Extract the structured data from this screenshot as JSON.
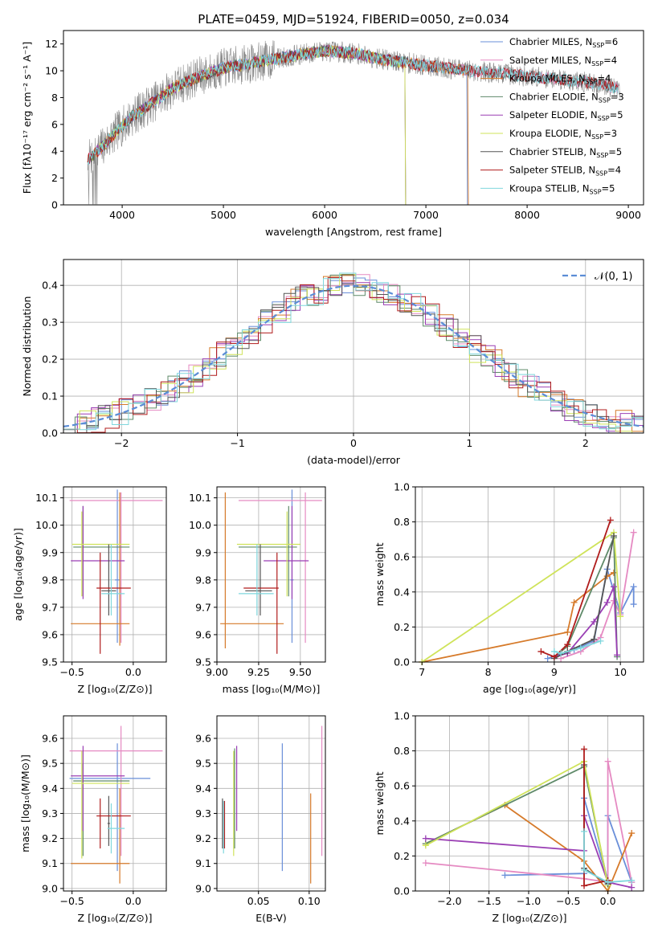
{
  "page_title": "PLATE=0459, MJD=51924, FIBERID=0050, z=0.034",
  "models": [
    {
      "name": "Chabrier MILES",
      "nssp": "6",
      "color": "#6a8fd9"
    },
    {
      "name": "Salpeter MILES",
      "nssp": "4",
      "color": "#e58ac2"
    },
    {
      "name": "Kroupa MILES",
      "nssp": "4",
      "color": "#d67a2a"
    },
    {
      "name": "Chabrier ELODIE",
      "nssp": "3",
      "color": "#5f8a69"
    },
    {
      "name": "Salpeter ELODIE",
      "nssp": "5",
      "color": "#9a3fb4"
    },
    {
      "name": "Kroupa ELODIE",
      "nssp": "3",
      "color": "#cfe35a"
    },
    {
      "name": "Chabrier STELIB",
      "nssp": "5",
      "color": "#555555"
    },
    {
      "name": "Salpeter STELIB",
      "nssp": "4",
      "color": "#b01c1c"
    },
    {
      "name": "Kroupa STELIB",
      "nssp": "5",
      "color": "#7fd7dd"
    }
  ],
  "chart_data": [
    {
      "id": "spectrum",
      "type": "line",
      "title": "PLATE=0459, MJD=51924, FIBERID=0050, z=0.034",
      "xlabel": "wavelength [Angstrom, rest frame]",
      "ylabel": "Flux [fλ10⁻¹⁷ erg cm⁻² s⁻¹ A⁻¹]",
      "xlim": [
        3420,
        9150
      ],
      "ylim": [
        0,
        13
      ],
      "xticks": [
        4000,
        5000,
        6000,
        7000,
        8000,
        9000
      ],
      "yticks": [
        0,
        2,
        4,
        6,
        8,
        10,
        12
      ],
      "grid": false,
      "legend": "upper right",
      "continuum": [
        [
          3650,
          3.3
        ],
        [
          3800,
          4.3
        ],
        [
          3950,
          5.5
        ],
        [
          4100,
          6.6
        ],
        [
          4300,
          7.6
        ],
        [
          4500,
          8.7
        ],
        [
          4700,
          9.4
        ],
        [
          5000,
          10.2
        ],
        [
          5300,
          10.6
        ],
        [
          5600,
          11.0
        ],
        [
          6000,
          11.5
        ],
        [
          6300,
          11.3
        ],
        [
          6600,
          10.8
        ],
        [
          7000,
          10.4
        ],
        [
          7300,
          10.1
        ],
        [
          7600,
          9.9
        ],
        [
          8000,
          9.6
        ],
        [
          8300,
          9.4
        ],
        [
          8700,
          9.0
        ],
        [
          8900,
          8.7
        ]
      ],
      "model_end_wavelength": {
        "Chabrier MILES": 7410,
        "Kroupa MILES": 7420,
        "Kroupa ELODIE": 6800,
        "Salpeter ELODIE": 6800,
        "Chabrier ELODIE": 6800
      }
    },
    {
      "id": "residuals",
      "type": "histogram",
      "xlabel": "(data-model)/error",
      "ylabel": "Normed distribution",
      "xlim": [
        -2.5,
        2.5
      ],
      "ylim": [
        0,
        0.47
      ],
      "xticks": [
        -2,
        -1,
        0,
        1,
        2
      ],
      "xtick_labels": [
        "−2",
        "−1",
        "0",
        "1",
        "2"
      ],
      "yticks": [
        0.0,
        0.1,
        0.2,
        0.3,
        0.4
      ],
      "grid": true,
      "legend": "upper right",
      "reference_curve": {
        "label": "𝒩(0, 1)",
        "mean": 0,
        "sigma": 1
      }
    },
    {
      "id": "Z-age",
      "type": "errorbar",
      "xlabel": "Z [log₁₀(Z/Z⊙)]",
      "ylabel": "age  [log₁₀(age/yr)]",
      "xlim": [
        -0.57,
        0.27
      ],
      "ylim": [
        9.5,
        10.14
      ],
      "xticks": [
        -0.5,
        0.0
      ],
      "xtick_labels": [
        "−0.5",
        "0.0"
      ],
      "yticks": [
        9.5,
        9.6,
        9.7,
        9.8,
        9.9,
        10.0,
        10.1
      ],
      "grid": true,
      "points": [
        {
          "model": "Chabrier MILES",
          "x": -0.13,
          "xlo": -0.15,
          "xhi": -0.11,
          "y": 9.8,
          "ylo": 9.57,
          "yhi": 10.13
        },
        {
          "model": "Salpeter MILES",
          "x": -0.1,
          "xlo": -0.52,
          "xhi": 0.24,
          "y": 10.09,
          "ylo": 9.57,
          "yhi": 10.12
        },
        {
          "model": "Kroupa MILES",
          "x": -0.11,
          "xlo": -0.51,
          "xhi": -0.03,
          "y": 9.64,
          "ylo": 9.56,
          "yhi": 10.12
        },
        {
          "model": "Chabrier ELODIE",
          "x": -0.41,
          "xlo": -0.49,
          "xhi": -0.03,
          "y": 9.92,
          "ylo": 9.74,
          "yhi": 10.07
        },
        {
          "model": "Salpeter ELODIE",
          "x": -0.41,
          "xlo": -0.51,
          "xhi": -0.07,
          "y": 9.87,
          "ylo": 9.73,
          "yhi": 10.07
        },
        {
          "model": "Kroupa ELODIE",
          "x": -0.42,
          "xlo": -0.5,
          "xhi": -0.03,
          "y": 9.93,
          "ylo": 9.74,
          "yhi": 10.05
        },
        {
          "model": "Chabrier STELIB",
          "x": -0.2,
          "xlo": -0.26,
          "xhi": -0.14,
          "y": 9.76,
          "ylo": 9.67,
          "yhi": 9.93
        },
        {
          "model": "Salpeter STELIB",
          "x": -0.27,
          "xlo": -0.3,
          "xhi": -0.02,
          "y": 9.77,
          "ylo": 9.53,
          "yhi": 9.9
        },
        {
          "model": "Kroupa STELIB",
          "x": -0.18,
          "xlo": -0.26,
          "xhi": -0.07,
          "y": 9.75,
          "ylo": 9.67,
          "yhi": 9.93
        }
      ]
    },
    {
      "id": "mass-age",
      "type": "errorbar",
      "xlabel": "mass [log₁₀(M/M⊙)]",
      "ylabel": "",
      "xlim": [
        9.0,
        9.65
      ],
      "ylim": [
        9.5,
        10.14
      ],
      "xticks": [
        9.0,
        9.25,
        9.5
      ],
      "xtick_labels": [
        "9.00",
        "9.25",
        "9.50"
      ],
      "yticks": [
        9.5,
        9.6,
        9.7,
        9.8,
        9.9,
        10.0,
        10.1
      ],
      "grid": true,
      "points": [
        {
          "model": "Chabrier MILES",
          "x": 9.45,
          "xlo": 9.44,
          "xhi": 9.46,
          "y": 9.8,
          "ylo": 9.57,
          "yhi": 10.13
        },
        {
          "model": "Salpeter MILES",
          "x": 9.53,
          "xlo": 9.13,
          "xhi": 9.63,
          "y": 10.09,
          "ylo": 9.57,
          "yhi": 10.12
        },
        {
          "model": "Kroupa MILES",
          "x": 9.05,
          "xlo": 9.02,
          "xhi": 9.4,
          "y": 9.64,
          "ylo": 9.55,
          "yhi": 10.12
        },
        {
          "model": "Chabrier ELODIE",
          "x": 9.43,
          "xlo": 9.13,
          "xhi": 9.48,
          "y": 9.92,
          "ylo": 9.74,
          "yhi": 10.07
        },
        {
          "model": "Salpeter ELODIE",
          "x": 9.45,
          "xlo": 9.28,
          "xhi": 9.55,
          "y": 9.87,
          "ylo": 9.73,
          "yhi": 10.07
        },
        {
          "model": "Kroupa ELODIE",
          "x": 9.42,
          "xlo": 9.12,
          "xhi": 9.5,
          "y": 9.93,
          "ylo": 9.74,
          "yhi": 10.05
        },
        {
          "model": "Chabrier STELIB",
          "x": 9.26,
          "xlo": 9.17,
          "xhi": 9.33,
          "y": 9.76,
          "ylo": 9.67,
          "yhi": 9.93
        },
        {
          "model": "Salpeter STELIB",
          "x": 9.36,
          "xlo": 9.16,
          "xhi": 9.37,
          "y": 9.77,
          "ylo": 9.53,
          "yhi": 9.9
        },
        {
          "model": "Kroupa STELIB",
          "x": 9.24,
          "xlo": 9.13,
          "xhi": 9.34,
          "y": 9.75,
          "ylo": 9.67,
          "yhi": 9.93
        }
      ]
    },
    {
      "id": "age-weight",
      "type": "line",
      "xlabel": "age  [log₁₀(age/yr)]",
      "ylabel": "mass weight",
      "xlim": [
        6.9,
        10.35
      ],
      "ylim": [
        0,
        1
      ],
      "xticks": [
        7,
        8,
        9,
        10
      ],
      "yticks": [
        0.0,
        0.2,
        0.4,
        0.6,
        0.8,
        1.0
      ],
      "grid": true,
      "series": [
        {
          "model": "Chabrier MILES",
          "x": [
            8.9,
            9.3,
            9.6,
            9.8,
            10.0,
            10.2,
            10.2
          ],
          "y": [
            0.02,
            0.07,
            0.12,
            0.53,
            0.28,
            0.43,
            0.33
          ]
        },
        {
          "model": "Salpeter MILES",
          "x": [
            9.1,
            9.4,
            9.7,
            9.9,
            10.0,
            10.2
          ],
          "y": [
            0.02,
            0.06,
            0.14,
            0.35,
            0.27,
            0.74
          ]
        },
        {
          "model": "Kroupa MILES",
          "x": [
            7.0,
            9.2,
            9.3,
            9.8,
            9.9
          ],
          "y": [
            0.0,
            0.17,
            0.34,
            0.49,
            0.51
          ]
        },
        {
          "model": "Chabrier ELODIE",
          "x": [
            9.0,
            9.2,
            9.9,
            9.95
          ],
          "y": [
            0.03,
            0.09,
            0.71,
            0.03
          ]
        },
        {
          "model": "Salpeter ELODIE",
          "x": [
            9.0,
            9.2,
            9.6,
            9.8,
            9.9,
            9.95
          ],
          "y": [
            0.03,
            0.05,
            0.23,
            0.34,
            0.43,
            0.04
          ]
        },
        {
          "model": "Kroupa ELODIE",
          "x": [
            7.0,
            9.9,
            10.0
          ],
          "y": [
            0.0,
            0.74,
            0.26
          ]
        },
        {
          "model": "Chabrier STELIB",
          "x": [
            9.0,
            9.2,
            9.6,
            9.9
          ],
          "y": [
            0.02,
            0.06,
            0.13,
            0.72
          ]
        },
        {
          "model": "Salpeter STELIB",
          "x": [
            8.8,
            9.0,
            9.2,
            9.85
          ],
          "y": [
            0.06,
            0.03,
            0.1,
            0.81
          ]
        },
        {
          "model": "Kroupa STELIB",
          "x": [
            9.0,
            9.1,
            9.4,
            9.7
          ],
          "y": [
            0.06,
            0.05,
            0.08,
            0.12
          ]
        }
      ]
    },
    {
      "id": "Z-mass",
      "type": "errorbar",
      "xlabel": "Z [log₁₀(Z/Z⊙)]",
      "ylabel": "mass [log₁₀(M/M⊙)]",
      "xlim": [
        -0.57,
        0.27
      ],
      "ylim": [
        8.99,
        9.69
      ],
      "xticks": [
        -0.5,
        0.0
      ],
      "xtick_labels": [
        "−0.5",
        "0.0"
      ],
      "yticks": [
        9.0,
        9.1,
        9.2,
        9.3,
        9.4,
        9.5,
        9.6
      ],
      "grid": true,
      "points": [
        {
          "model": "Chabrier MILES",
          "x": -0.13,
          "xlo": -0.52,
          "xhi": 0.14,
          "y": 9.44,
          "ylo": 9.07,
          "yhi": 9.58
        },
        {
          "model": "Salpeter MILES",
          "x": -0.1,
          "xlo": -0.52,
          "xhi": 0.24,
          "y": 9.55,
          "ylo": 9.13,
          "yhi": 9.65
        },
        {
          "model": "Kroupa MILES",
          "x": -0.11,
          "xlo": -0.51,
          "xhi": -0.03,
          "y": 9.1,
          "ylo": 9.02,
          "yhi": 9.4
        },
        {
          "model": "Chabrier ELODIE",
          "x": -0.41,
          "xlo": -0.49,
          "xhi": -0.03,
          "y": 9.43,
          "ylo": 9.13,
          "yhi": 9.5
        },
        {
          "model": "Salpeter ELODIE",
          "x": -0.41,
          "xlo": -0.51,
          "xhi": -0.07,
          "y": 9.45,
          "ylo": 9.23,
          "yhi": 9.57
        },
        {
          "model": "Kroupa ELODIE",
          "x": -0.42,
          "xlo": -0.5,
          "xhi": -0.03,
          "y": 9.42,
          "ylo": 9.12,
          "yhi": 9.55
        },
        {
          "model": "Chabrier STELIB",
          "x": -0.2,
          "xlo": -0.21,
          "xhi": -0.19,
          "y": 9.26,
          "ylo": 9.17,
          "yhi": 9.37
        },
        {
          "model": "Salpeter STELIB",
          "x": -0.27,
          "xlo": -0.3,
          "xhi": -0.02,
          "y": 9.29,
          "ylo": 9.16,
          "yhi": 9.36
        },
        {
          "model": "Kroupa STELIB",
          "x": -0.18,
          "xlo": -0.21,
          "xhi": -0.07,
          "y": 9.24,
          "ylo": 9.14,
          "yhi": 9.34
        }
      ]
    },
    {
      "id": "ebv-mass",
      "type": "errorbar",
      "xlabel": "E(B-V)",
      "ylabel": "",
      "xlim": [
        0.009,
        0.116
      ],
      "ylim": [
        8.99,
        9.69
      ],
      "xticks": [
        0.05,
        0.1
      ],
      "xtick_labels": [
        "0.05",
        "0.10"
      ],
      "yticks": [
        9.0,
        9.1,
        9.2,
        9.3,
        9.4,
        9.5,
        9.6
      ],
      "grid": true,
      "points": [
        {
          "model": "Chabrier STELIB",
          "x": 0.0145,
          "y": 9.26,
          "ylo": 9.16,
          "yhi": 9.36
        },
        {
          "model": "Salpeter STELIB",
          "x": 0.0165,
          "y": 9.26,
          "ylo": 9.16,
          "yhi": 9.35
        },
        {
          "model": "Kroupa STELIB",
          "x": 0.0155,
          "y": 9.25,
          "ylo": 9.14,
          "yhi": 9.35
        },
        {
          "model": "Kroupa ELODIE",
          "x": 0.0255,
          "y": 9.4,
          "ylo": 9.13,
          "yhi": 9.55
        },
        {
          "model": "Chabrier ELODIE",
          "x": 0.0265,
          "y": 9.41,
          "ylo": 9.16,
          "yhi": 9.56
        },
        {
          "model": "Salpeter ELODIE",
          "x": 0.0285,
          "y": 9.4,
          "ylo": 9.23,
          "yhi": 9.57
        },
        {
          "model": "Chabrier MILES",
          "x": 0.0735,
          "y": 9.32,
          "ylo": 9.07,
          "yhi": 9.58
        },
        {
          "model": "Kroupa MILES",
          "x": 0.1015,
          "y": 9.2,
          "ylo": 9.02,
          "yhi": 9.38
        },
        {
          "model": "Salpeter MILES",
          "x": 0.1125,
          "y": 9.4,
          "ylo": 9.13,
          "yhi": 9.65
        }
      ]
    },
    {
      "id": "Z-weight",
      "type": "line",
      "xlabel": "Z [log₁₀(Z/Z⊙)]",
      "ylabel": "mass weight",
      "xlim": [
        -2.43,
        0.45
      ],
      "ylim": [
        0,
        1
      ],
      "xticks": [
        -2.0,
        -1.5,
        -1.0,
        -0.5,
        0.0
      ],
      "xtick_labels": [
        "−2.0",
        "−1.5",
        "−1.0",
        "−0.5",
        "0.0"
      ],
      "yticks": [
        0.0,
        0.2,
        0.4,
        0.6,
        0.8,
        1.0
      ],
      "grid": true,
      "series": [
        {
          "model": "Chabrier MILES",
          "x": [
            -1.3,
            -0.3,
            -0.3,
            0.0,
            0.0,
            0.3
          ],
          "y": [
            0.09,
            0.1,
            0.53,
            0.06,
            0.43,
            0.05
          ]
        },
        {
          "model": "Salpeter MILES",
          "x": [
            -2.3,
            -0.3,
            0.0,
            0.0,
            0.3
          ],
          "y": [
            0.16,
            0.07,
            0.05,
            0.74,
            0.05
          ]
        },
        {
          "model": "Kroupa MILES",
          "x": [
            -2.3,
            -1.3,
            -0.3,
            0.0,
            0.3
          ],
          "y": [
            0.27,
            0.49,
            0.17,
            0.0,
            0.33
          ]
        },
        {
          "model": "Chabrier ELODIE",
          "x": [
            -2.3,
            -0.3,
            0.0
          ],
          "y": [
            0.27,
            0.71,
            0.04
          ]
        },
        {
          "model": "Salpeter ELODIE",
          "x": [
            -2.3,
            -0.3,
            -0.3,
            0.0,
            0.3
          ],
          "y": [
            0.3,
            0.23,
            0.43,
            0.05,
            0.02
          ]
        },
        {
          "model": "Kroupa ELODIE",
          "x": [
            -2.3,
            -0.3,
            0.0
          ],
          "y": [
            0.26,
            0.74,
            0.03
          ]
        },
        {
          "model": "Chabrier STELIB",
          "x": [
            -0.3,
            -0.3,
            0.0
          ],
          "y": [
            0.72,
            0.13,
            0.04
          ]
        },
        {
          "model": "Salpeter STELIB",
          "x": [
            -0.3,
            -0.3,
            0.0,
            0.0
          ],
          "y": [
            0.81,
            0.03,
            0.06,
            0.05
          ]
        },
        {
          "model": "Kroupa STELIB",
          "x": [
            -0.3,
            -0.3,
            0.0,
            0.3
          ],
          "y": [
            0.34,
            0.12,
            0.05,
            0.06
          ]
        }
      ]
    }
  ]
}
